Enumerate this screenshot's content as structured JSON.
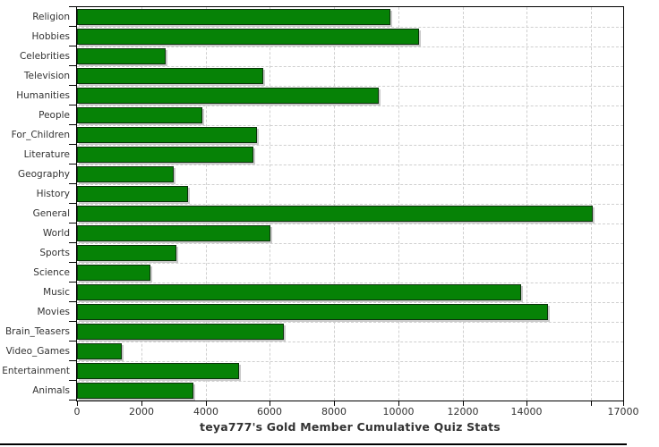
{
  "chart_data": {
    "type": "bar",
    "orientation": "horizontal",
    "title": "teya777's Gold Member Cumulative Quiz Stats",
    "categories": [
      "Religion",
      "Hobbies",
      "Celebrities",
      "Television",
      "Humanities",
      "People",
      "For_Children",
      "Literature",
      "Geography",
      "History",
      "General",
      "World",
      "Sports",
      "Science",
      "Music",
      "Movies",
      "Brain_Teasers",
      "Video_Games",
      "Entertainment",
      "Animals"
    ],
    "values": [
      9750,
      10650,
      2760,
      5800,
      9400,
      3900,
      5590,
      5500,
      3020,
      3460,
      16060,
      6010,
      3090,
      2280,
      13820,
      14650,
      6430,
      1400,
      5040,
      3620
    ],
    "x_axis": {
      "min": 0,
      "max": 17000,
      "tick_interval": 2000,
      "tick_values": [
        0,
        2000,
        4000,
        6000,
        8000,
        10000,
        12000,
        14000,
        16000,
        17000
      ],
      "labeled_ticks": [
        {
          "value": 0,
          "label": "0"
        },
        {
          "value": 2000,
          "label": "2000"
        },
        {
          "value": 4000,
          "label": "4000"
        },
        {
          "value": 6000,
          "label": "6000"
        },
        {
          "value": 8000,
          "label": "8000"
        },
        {
          "value": 10000,
          "label": "10000"
        },
        {
          "value": 12000,
          "label": "12000"
        },
        {
          "value": 14000,
          "label": "14000"
        },
        {
          "value": 17000,
          "label": "17000"
        }
      ]
    },
    "grid": "dashed",
    "legend": "none",
    "colors": {
      "bar_fill": "#068206",
      "bar_border": "#0b330b",
      "bar_shadow": "#c9c9c9",
      "grid_line": "#cfcfcf",
      "axis_line": "#000000",
      "text": "#333333",
      "background": "#ffffff"
    }
  }
}
